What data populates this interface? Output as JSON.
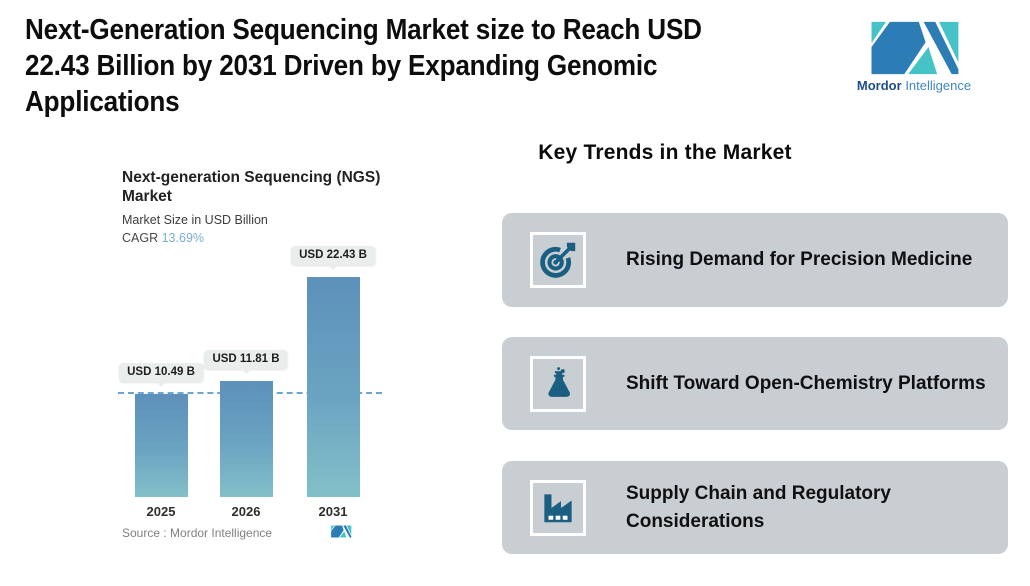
{
  "headline": "Next-Generation Sequencing Market size to Reach USD 22.43 Billion by 2031 Driven by Expanding Genomic Applications",
  "brand": {
    "name_bold": "Mordor",
    "name_light": "Intelligence",
    "teal": "#46c3c7",
    "blue": "#2c7db6"
  },
  "chart": {
    "title": "Next-generation Sequencing (NGS) Market",
    "title_line1": "Next-generation Sequencing (NGS)",
    "title_line2": "Market",
    "subtitle": "Market Size in USD Billion",
    "cagr_label": "CAGR",
    "cagr_value": "13.69%",
    "source_note": "Source :  Mordor Intelligence"
  },
  "chart_data": {
    "type": "bar",
    "title": "Next-generation Sequencing (NGS) Market",
    "subtitle": "Market Size in USD Billion",
    "cagr": "13.69%",
    "categories": [
      "2025",
      "2026",
      "2031"
    ],
    "values": [
      10.49,
      11.81,
      22.43
    ],
    "bar_labels": [
      "USD 10.49 B",
      "USD 11.81 B",
      "USD 22.43 B"
    ],
    "xlabel": "",
    "ylabel": "Market Size in USD Billion",
    "ylim": [
      0,
      24
    ],
    "grid": false,
    "legend": false,
    "dashed_reference_line_at": 10.49,
    "bar_gradient_top": "#5d90ba",
    "bar_gradient_bottom": "#82c0c8",
    "tooltip_bg": "#e9edec",
    "dashed_line_color": "#6ea6d2"
  },
  "key_trends": {
    "heading": "Key Trends in the Market",
    "card_bg": "#c9ced3",
    "icon_color": "#1a5f82",
    "cards": [
      {
        "icon": "target-arrow-icon",
        "label": "Rising Demand for Precision Medicine"
      },
      {
        "icon": "flask-icon",
        "label": "Shift Toward Open-Chemistry Platforms"
      },
      {
        "icon": "factory-icon",
        "label": "Supply Chain and Regulatory Considerations"
      }
    ]
  }
}
